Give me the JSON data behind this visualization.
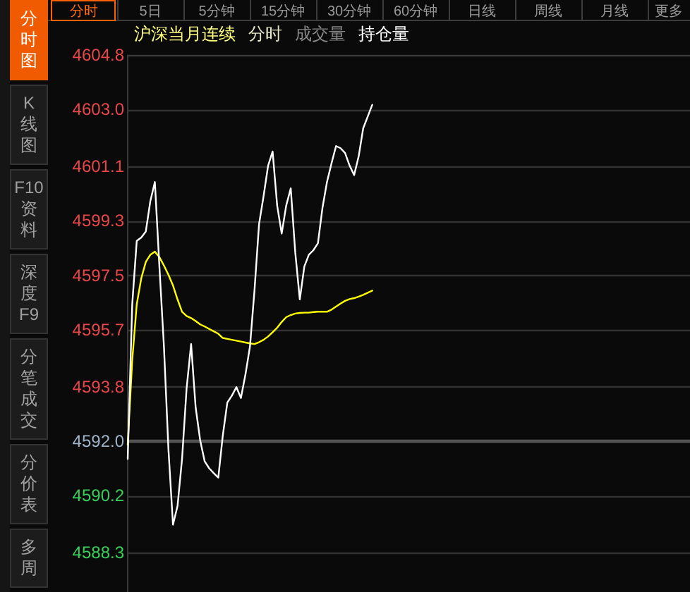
{
  "chart_data": {
    "type": "line",
    "title": "沪深当月连续",
    "annotations": [
      "分时",
      "成交量",
      "持仓量",
      "分时",
      "5日",
      "5分钟",
      "15分钟",
      "30分钟",
      "60分钟",
      "日线",
      "周线",
      "月线",
      "更多",
      "分时图",
      "K线图",
      "F10资料",
      "深度F9",
      "分笔成交",
      "分价表",
      "多周"
    ],
    "categories": [
      null,
      null,
      null,
      null,
      null,
      null,
      null,
      null,
      null,
      null,
      null,
      null,
      null,
      null,
      null,
      null,
      null,
      null,
      null,
      null,
      null,
      null,
      null,
      null,
      null,
      null,
      null,
      null,
      null,
      null,
      null,
      null,
      null,
      null,
      null,
      null,
      null,
      null,
      null,
      null,
      null,
      null,
      null,
      null,
      null,
      null,
      null,
      null,
      null,
      null,
      null,
      null,
      null,
      null,
      null,
      null,
      null,
      null,
      null,
      null,
      null,
      null,
      null,
      null,
      null,
      null,
      null,
      null,
      null,
      null,
      null,
      null,
      null,
      null,
      null,
      null,
      null,
      null,
      null,
      null,
      null,
      null,
      null,
      null,
      null,
      null,
      null,
      null,
      null,
      null,
      null,
      null,
      null,
      null,
      null,
      null,
      null,
      null,
      null,
      null,
      null,
      null,
      null,
      null,
      null,
      null,
      null,
      null,
      null,
      null,
      null,
      null,
      null,
      null,
      null,
      null,
      null,
      null,
      null,
      null,
      null,
      null,
      null,
      null,
      null
    ],
    "series": [
      {
        "color": "#ffffff",
        "values": [
          4591.41,
          4596.54,
          4598.64,
          4598.75,
          4598.95,
          4599.96,
          4600.59,
          4597.79,
          4595.14,
          4591.72,
          4589.23,
          4589.85,
          4591.41,
          4593.74,
          4595.22,
          4593.12,
          4592.03,
          4591.33,
          4591.1,
          4590.94,
          4590.79,
          4592.19,
          4593.28,
          4593.51,
          4593.79,
          4593.43,
          4594.21,
          4595.14,
          4597.01,
          4599.19,
          4600.12,
          4601.13,
          4601.6,
          4599.81,
          4598.88,
          4599.81,
          4600.38,
          4598.25,
          4596.7,
          4597.79,
          4598.18,
          4598.33,
          4598.56,
          4599.73,
          4600.59,
          4601.21,
          4601.78,
          4601.71,
          4601.55,
          4601.13,
          4600.82,
          4601.44,
          4602.37,
          4602.76,
          4603.15,
          null,
          null,
          null,
          null,
          null,
          null,
          null,
          null,
          null,
          null,
          null,
          null,
          null,
          null,
          null,
          null,
          null,
          null,
          null,
          null,
          null,
          null,
          null,
          null,
          null,
          null,
          null,
          null,
          null,
          null,
          null,
          null,
          null,
          null,
          null,
          null,
          null,
          null,
          null,
          null,
          null,
          null,
          null,
          null,
          null,
          null,
          null,
          null,
          null,
          null,
          null,
          null,
          null,
          null,
          null,
          null,
          null,
          null,
          null,
          null,
          null,
          null,
          null,
          null,
          null,
          null,
          null,
          null,
          null,
          null
        ]
      },
      {
        "color": "#ffff00",
        "values": [
          4591.88,
          4594.68,
          4596.54,
          4597.4,
          4597.94,
          4598.18,
          4598.28,
          4598.1,
          4597.82,
          4597.51,
          4597.16,
          4596.7,
          4596.29,
          4596.15,
          4596.08,
          4595.98,
          4595.87,
          4595.8,
          4595.72,
          4595.64,
          4595.56,
          4595.42,
          4595.39,
          4595.36,
          4595.33,
          4595.3,
          4595.27,
          4595.24,
          4595.22,
          4595.28,
          4595.36,
          4595.47,
          4595.61,
          4595.76,
          4595.95,
          4596.11,
          4596.18,
          4596.23,
          4596.25,
          4596.26,
          4596.26,
          4596.28,
          4596.29,
          4596.29,
          4596.29,
          4596.36,
          4596.46,
          4596.56,
          4596.65,
          4596.71,
          4596.74,
          4596.79,
          4596.85,
          4596.92,
          4596.99,
          null,
          null,
          null,
          null,
          null,
          null,
          null,
          null,
          null,
          null,
          null,
          null,
          null,
          null,
          null,
          null,
          null,
          null,
          null,
          null,
          null,
          null,
          null,
          null,
          null,
          null,
          null,
          null,
          null,
          null,
          null,
          null,
          null,
          null,
          null,
          null,
          null,
          null,
          null,
          null,
          null,
          null,
          null,
          null,
          null,
          null,
          null,
          null,
          null,
          null,
          null,
          null,
          null,
          null,
          null,
          null,
          null,
          null,
          null,
          null,
          null,
          null,
          null,
          null,
          null,
          null,
          null,
          null,
          null,
          null
        ]
      }
    ],
    "ylim": [
      4587,
      4604.8
    ],
    "yticks": [
      4604.8,
      {
        "value": 4603,
        "label": "4603.0"
      },
      4601.1,
      4599.3,
      4597.5,
      4595.7,
      4593.8,
      {
        "value": 4592,
        "label": "4592.0"
      },
      4590.2,
      4588.3
    ],
    "ref_lines": [
      {
        "axis": "y",
        "value": 4592,
        "color": "#555555"
      }
    ],
    "grid": "y",
    "tick_labels": "y"
  }
}
